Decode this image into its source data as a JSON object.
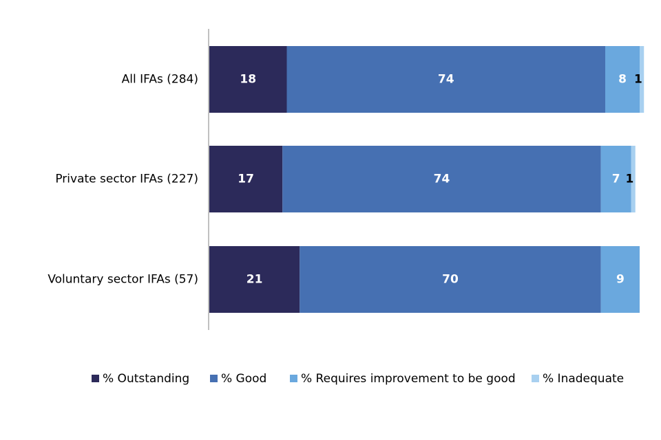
{
  "chart_data": {
    "type": "bar",
    "orientation": "horizontal",
    "stacked": true,
    "title": "",
    "xlabel": "",
    "ylabel": "",
    "xlim": [
      0,
      100
    ],
    "grid": false,
    "legend_position": "bottom",
    "categories": [
      "All IFAs (284)",
      "Private sector IFAs (227)",
      "Voluntary sector IFAs (57)"
    ],
    "series": [
      {
        "name": "% Outstanding",
        "color": "#2c2a5a",
        "label_color": "#ffffff",
        "values": [
          18,
          17,
          21
        ]
      },
      {
        "name": "% Good",
        "color": "#4670b2",
        "label_color": "#ffffff",
        "values": [
          74,
          74,
          70
        ]
      },
      {
        "name": "% Requires improvement to be good",
        "color": "#6aa8de",
        "label_color": "#ffffff",
        "values": [
          8,
          7,
          9
        ]
      },
      {
        "name": "% Inadequate",
        "color": "#a8d0f0",
        "label_color": "#000000",
        "values": [
          1,
          1,
          0
        ]
      }
    ]
  }
}
